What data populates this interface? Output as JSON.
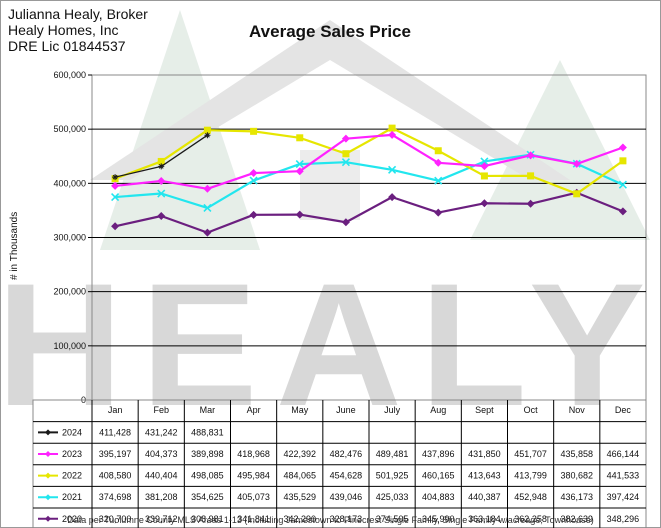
{
  "broker": {
    "line1": "Julianna Healy, Broker",
    "line2": "Healy Homes, Inc",
    "line3": "DRE Lic 01844537"
  },
  "footer": "Data per Tuolumne County MLS Areas 1-13 (Including Jamestown to Pinecrest Single Family, Single Family w/acreage, Townhouse)",
  "watermark": "HEALY",
  "chart_data": {
    "type": "line",
    "title": "Average Sales Price",
    "ylabel": "# in Thousands",
    "xlabel": "",
    "ylim": [
      0,
      600000
    ],
    "yticks": [
      "0",
      "100,000",
      "200,000",
      "300,000",
      "400,000",
      "500,000",
      "600,000"
    ],
    "grid": true,
    "legend": "data-table",
    "categories": [
      "Jan",
      "Feb",
      "Mar",
      "Apr",
      "May",
      "June",
      "July",
      "Aug",
      "Sept",
      "Oct",
      "Nov",
      "Dec"
    ],
    "series": [
      {
        "name": "2024",
        "color": "#1a1a1a",
        "marker": "star",
        "values": [
          411428,
          431242,
          488831,
          null,
          null,
          null,
          null,
          null,
          null,
          null,
          null,
          null
        ],
        "labels": [
          "411,428",
          "431,242",
          "488,831",
          "",
          "",
          "",
          "",
          "",
          "",
          "",
          "",
          ""
        ]
      },
      {
        "name": "2023",
        "color": "#ff22ff",
        "marker": "diamond",
        "values": [
          395197,
          404373,
          389898,
          418968,
          422392,
          482476,
          489481,
          437896,
          431850,
          451707,
          435858,
          466144
        ],
        "labels": [
          "395,197",
          "404,373",
          "389,898",
          "418,968",
          "422,392",
          "482,476",
          "489,481",
          "437,896",
          "431,850",
          "451,707",
          "435,858",
          "466,144"
        ]
      },
      {
        "name": "2022",
        "color": "#e6e600",
        "marker": "square",
        "values": [
          408580,
          440404,
          498085,
          495984,
          484065,
          454628,
          501925,
          460165,
          413643,
          413799,
          380682,
          441533
        ],
        "labels": [
          "408,580",
          "440,404",
          "498,085",
          "495,984",
          "484,065",
          "454,628",
          "501,925",
          "460,165",
          "413,643",
          "413,799",
          "380,682",
          "441,533"
        ]
      },
      {
        "name": "2021",
        "color": "#22e6ee",
        "marker": "x",
        "values": [
          374698,
          381208,
          354625,
          405073,
          435529,
          439046,
          425033,
          404883,
          440387,
          452948,
          436173,
          397424
        ],
        "labels": [
          "374,698",
          "381,208",
          "354,625",
          "405,073",
          "435,529",
          "439,046",
          "425,033",
          "404,883",
          "440,387",
          "452,948",
          "436,173",
          "397,424"
        ]
      },
      {
        "name": "2020",
        "color": "#6b1f7f",
        "marker": "diamond",
        "values": [
          320700,
          339712,
          308981,
          341841,
          342290,
          328173,
          374505,
          345990,
          363184,
          362258,
          382639,
          348296
        ],
        "labels": [
          "320,700",
          "339,712",
          "308,981",
          "341,841",
          "342,290",
          "328,173",
          "374,505",
          "345,990",
          "363,184",
          "362,258",
          "382,639",
          "348,296"
        ]
      }
    ]
  }
}
